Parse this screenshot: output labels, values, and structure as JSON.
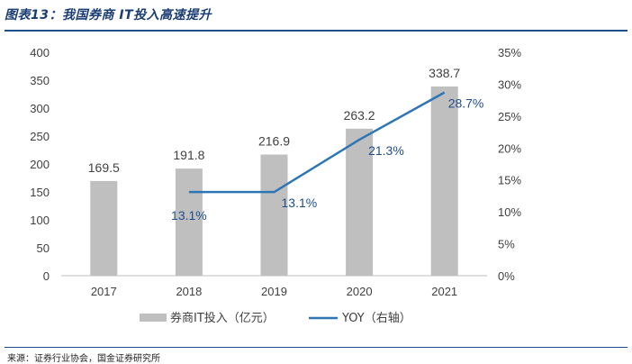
{
  "header": {
    "title": "图表13：我国券商 IT投入高速提升"
  },
  "footer": {
    "source": "来源：证券行业协会，国金证券研究所"
  },
  "chart_data": {
    "type": "bar",
    "categories": [
      "2017",
      "2018",
      "2019",
      "2020",
      "2021"
    ],
    "series": [
      {
        "name": "券商IT投入（亿元）",
        "type": "bar",
        "axis": "left",
        "values": [
          169.5,
          191.8,
          216.9,
          263.2,
          338.7
        ],
        "labels": [
          "169.5",
          "191.8",
          "216.9",
          "263.2",
          "338.7"
        ],
        "color": "#bfbfbf"
      },
      {
        "name": "YOY（右轴）",
        "type": "line",
        "axis": "right",
        "values": [
          null,
          13.1,
          13.1,
          21.3,
          28.7
        ],
        "labels": [
          null,
          "13.1%",
          "13.1%",
          "21.3%",
          "28.7%"
        ],
        "color": "#2e75b6"
      }
    ],
    "ylim": [
      0,
      400
    ],
    "yticks": [
      0,
      50,
      100,
      150,
      200,
      250,
      300,
      350,
      400
    ],
    "y2lim": [
      0,
      35
    ],
    "y2ticks": [
      0,
      5,
      10,
      15,
      20,
      25,
      30,
      35
    ],
    "y2tick_labels": [
      "0%",
      "5%",
      "10%",
      "15%",
      "20%",
      "25%",
      "30%",
      "35%"
    ],
    "grid": false,
    "legend_position": "bottom"
  }
}
